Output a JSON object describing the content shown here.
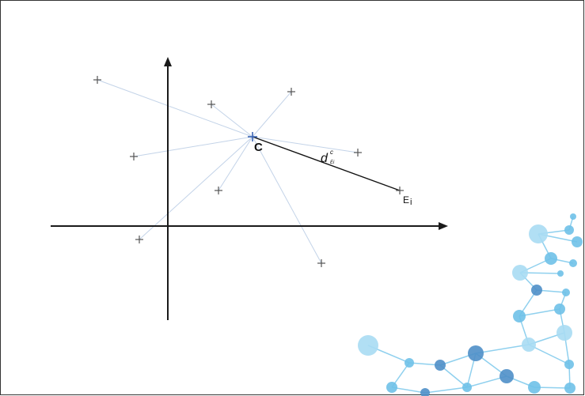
{
  "diagram": {
    "center_label": "C",
    "distance_label": {
      "main": "d",
      "superscript": "c",
      "subscript": "Ei"
    },
    "endpoint_label": {
      "main": "E",
      "subscript": "i"
    },
    "colors": {
      "axis": "#1a1a1a",
      "spoke": "#c3d3e8",
      "highlight_line": "#111111",
      "point_marker": "#555555",
      "center_marker": "#3a64b4",
      "frame_border": "#333333",
      "network_node_light": "#a9dcf3",
      "network_node_mid": "#6fc1e8",
      "network_node_dark": "#4f8fc8",
      "network_edge": "#8fd0ee"
    }
  }
}
